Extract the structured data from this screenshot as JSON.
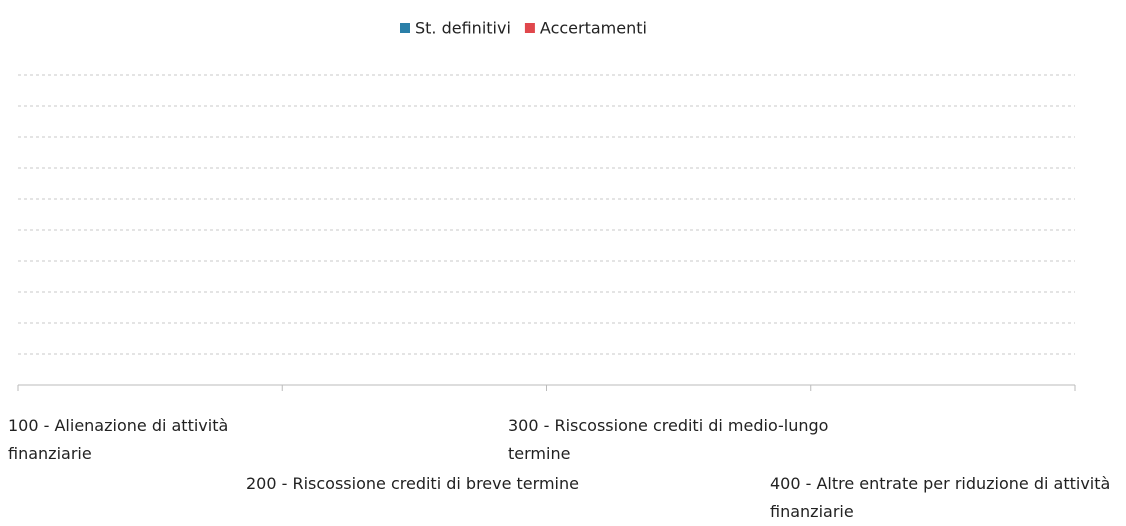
{
  "chart_data": {
    "type": "bar",
    "categories": [
      "100 - Alienazione di attività finanziarie",
      "200 - Riscossione crediti di breve termine",
      "300 - Riscossione crediti di medio-lungo termine",
      "400 - Altre entrate per riduzione di attività finanziarie"
    ],
    "series": [
      {
        "name": "St. definitivi",
        "color": "#2a7fa8",
        "values": [
          0,
          0,
          0,
          0
        ]
      },
      {
        "name": "Accertamenti",
        "color": "#e0474c",
        "values": [
          0,
          0,
          0,
          0
        ]
      }
    ],
    "ylim": [
      0,
      10
    ],
    "grid": true
  }
}
